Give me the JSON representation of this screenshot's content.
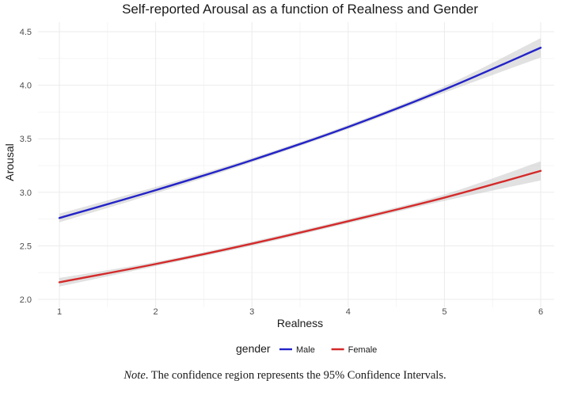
{
  "chart_data": {
    "type": "line",
    "title": "Self-reported Arousal as a function of Realness and Gender",
    "xlabel": "Realness",
    "ylabel": "Arousal",
    "x": [
      1,
      2,
      3,
      4,
      5,
      6
    ],
    "xlim": [
      1,
      6
    ],
    "ylim": [
      2.0,
      4.5
    ],
    "x_ticks": [
      "1",
      "2",
      "3",
      "4",
      "5",
      "6"
    ],
    "y_ticks": [
      "2.0",
      "2.5",
      "3.0",
      "3.5",
      "4.0",
      "4.5"
    ],
    "grid": true,
    "confidence_band": true,
    "legend": {
      "title": "gender",
      "placement": "bottom"
    },
    "series": [
      {
        "name": "Male",
        "color": "#2323c8",
        "values": [
          2.76,
          3.02,
          3.3,
          3.61,
          3.96,
          4.35
        ],
        "ci_lower": [
          2.72,
          2.99,
          3.28,
          3.59,
          3.93,
          4.26
        ],
        "ci_upper": [
          2.8,
          3.05,
          3.32,
          3.63,
          3.99,
          4.44
        ]
      },
      {
        "name": "Female",
        "color": "#d42a2a",
        "values": [
          2.16,
          2.33,
          2.52,
          2.73,
          2.95,
          3.2
        ],
        "ci_lower": [
          2.12,
          2.31,
          2.5,
          2.71,
          2.92,
          3.11
        ],
        "ci_upper": [
          2.2,
          2.35,
          2.54,
          2.75,
          2.98,
          3.29
        ]
      }
    ]
  },
  "note": {
    "label": "Note",
    "text": ". The confidence region represents the 95% Confidence Intervals."
  }
}
